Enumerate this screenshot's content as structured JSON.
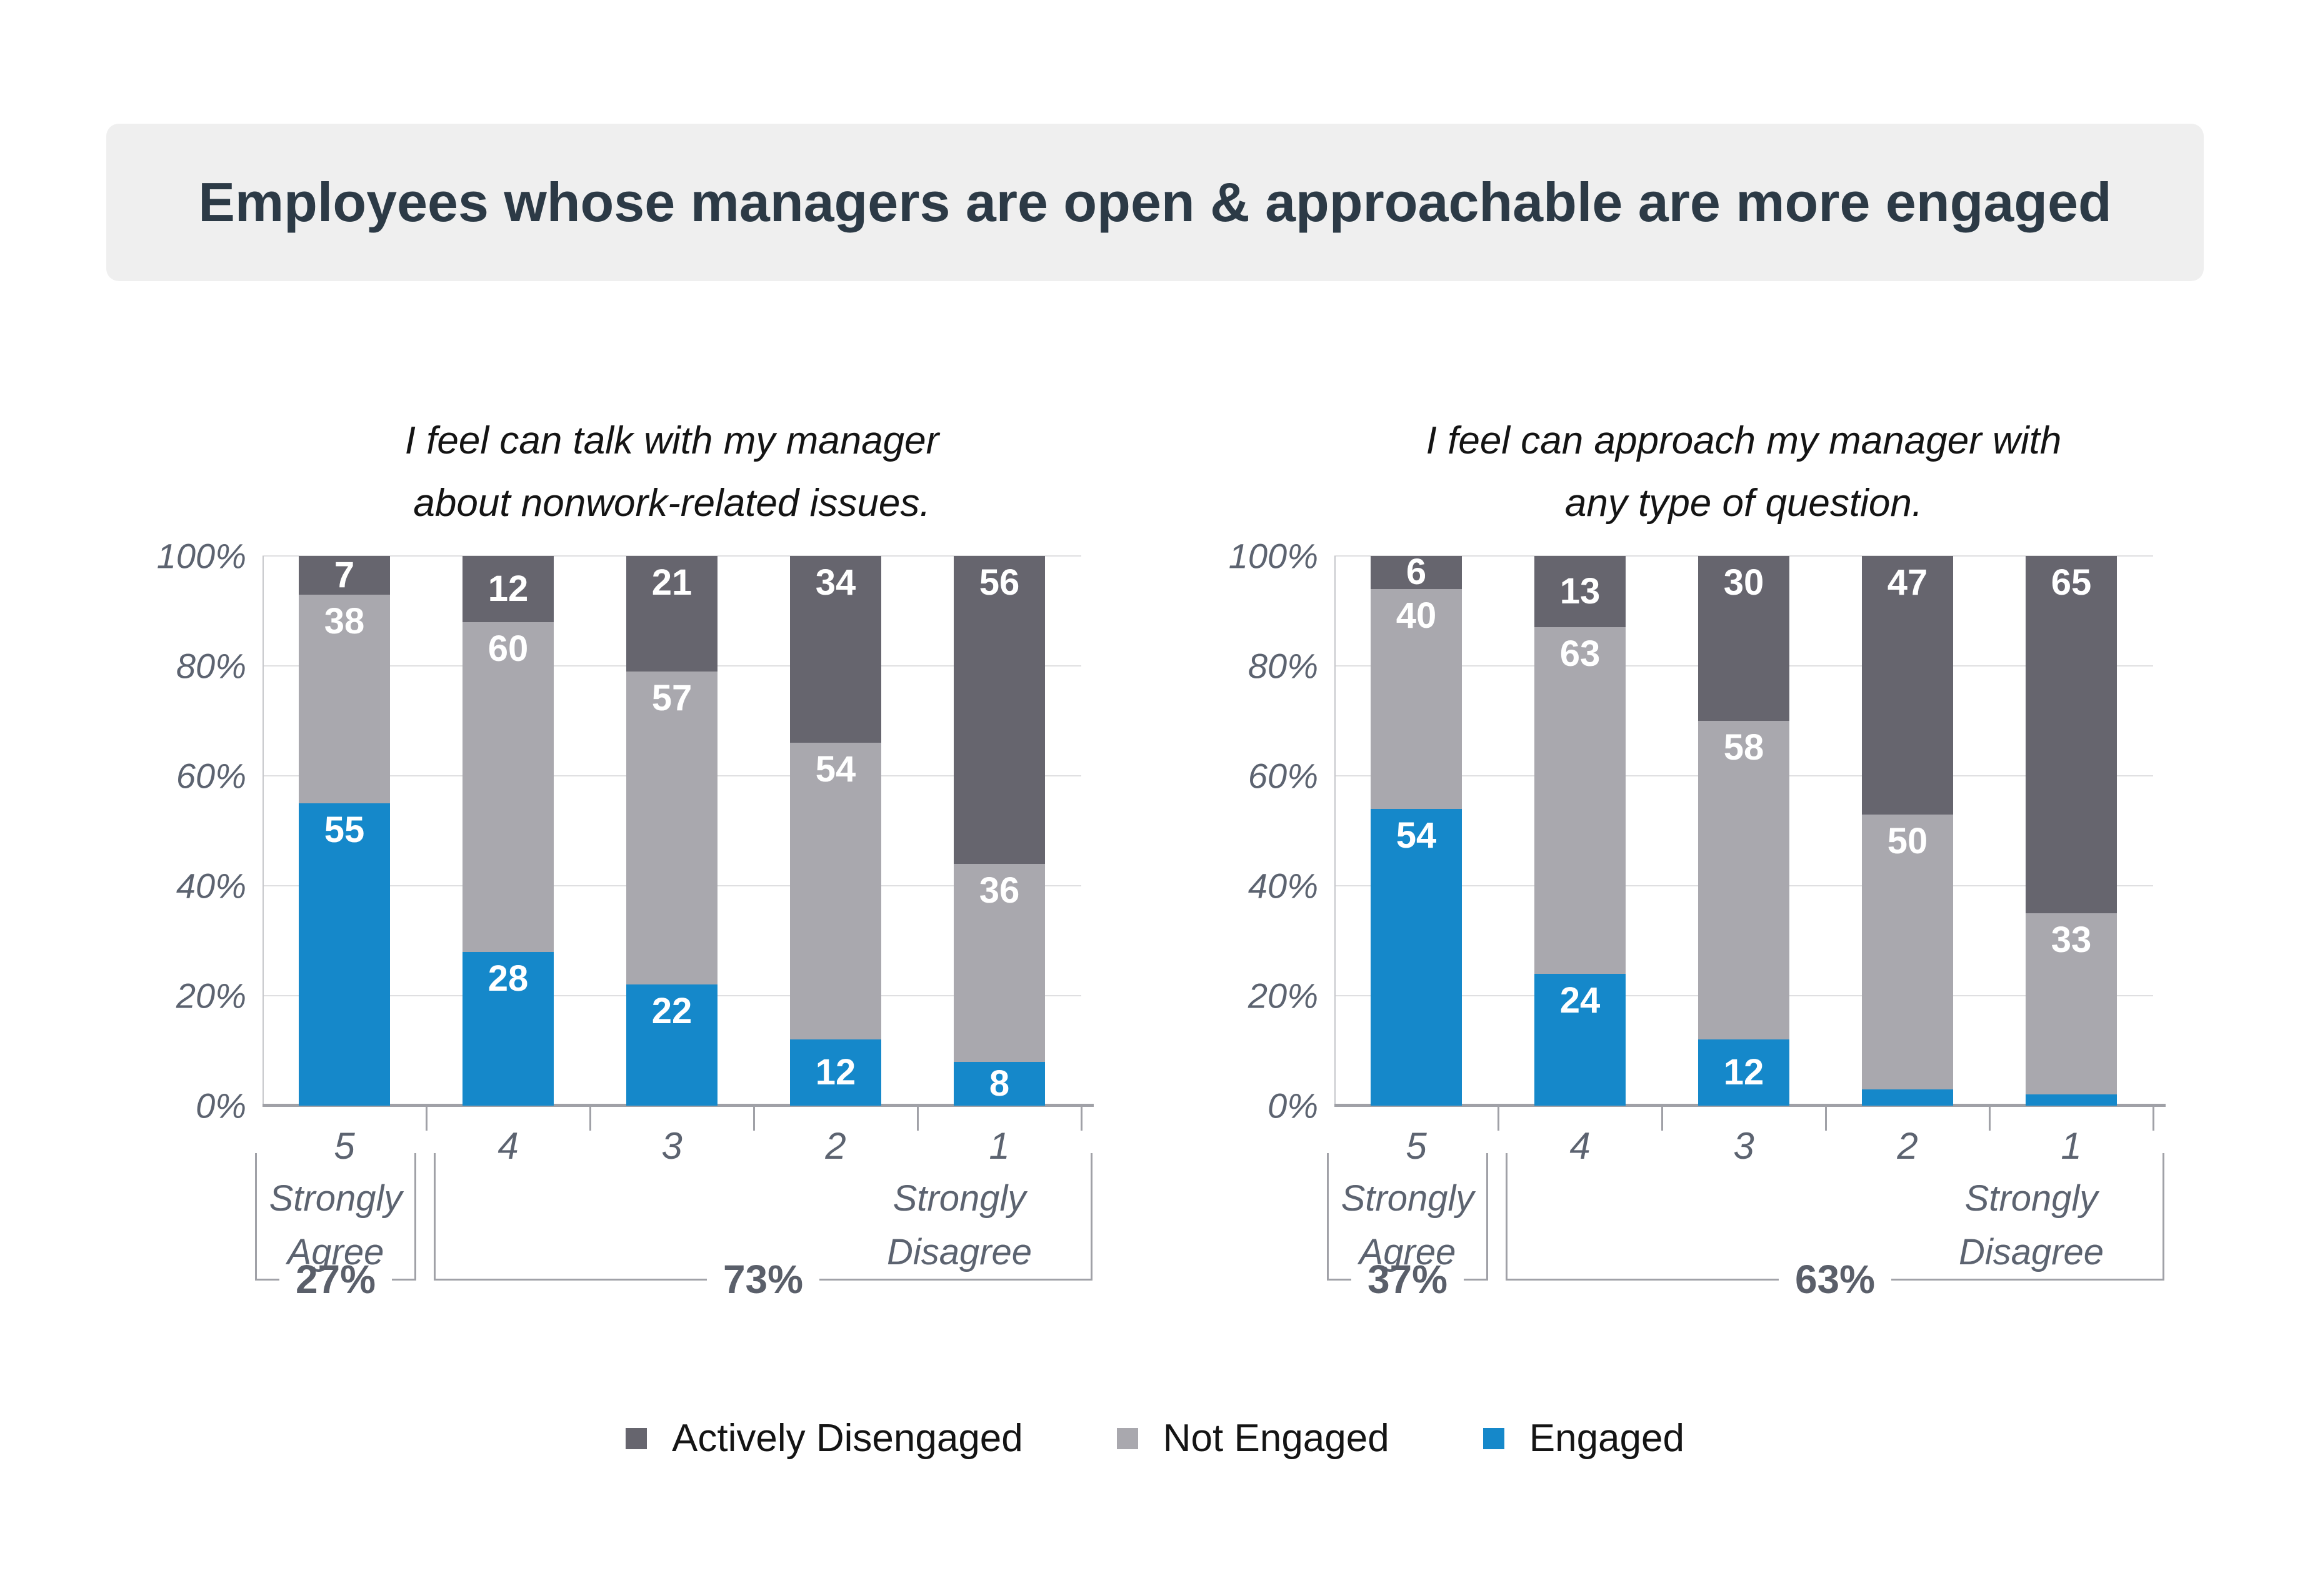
{
  "title": "Employees whose managers are open & approachable are more engaged",
  "colors": {
    "engaged": "#1588CA",
    "not_engaged": "#A9A8AE",
    "actively_disengaged": "#66656E",
    "banner_bg": "#EFEFEF",
    "title_text": "#2C3A46",
    "axis_text": "#5C6370",
    "grid": "#DFDFE1",
    "baseline": "#A0A1A7"
  },
  "chart_data": [
    {
      "type": "bar",
      "stacked": true,
      "title": "I feel can talk with my manager about nonwork-related issues.",
      "title_lines": [
        "I feel can talk with my manager",
        "about nonwork-related issues."
      ],
      "categories": [
        "5",
        "4",
        "3",
        "2",
        "1"
      ],
      "series": [
        {
          "name": "Engaged",
          "color": "#1588CA",
          "values": [
            55,
            28,
            22,
            12,
            8
          ]
        },
        {
          "name": "Not Engaged",
          "color": "#A9A8AE",
          "values": [
            38,
            60,
            57,
            54,
            36
          ]
        },
        {
          "name": "Actively Disengaged",
          "color": "#66656E",
          "values": [
            7,
            12,
            21,
            34,
            56
          ]
        }
      ],
      "ylim": [
        0,
        100
      ],
      "yticks": [
        "0%",
        "20%",
        "40%",
        "60%",
        "80%",
        "100%"
      ],
      "grid": true,
      "brackets": [
        {
          "label": "Strongly Agree",
          "percent": "27%",
          "span": "first",
          "align": "center"
        },
        {
          "label": "Strongly Disagree",
          "percent": "73%",
          "span": "rest",
          "align": "right"
        }
      ]
    },
    {
      "type": "bar",
      "stacked": true,
      "title": "I feel can approach my manager with any type of question.",
      "title_lines": [
        "I feel can approach my manager with",
        "any type of question."
      ],
      "categories": [
        "5",
        "4",
        "3",
        "2",
        "1"
      ],
      "series": [
        {
          "name": "Engaged",
          "color": "#1588CA",
          "values": [
            54,
            24,
            12,
            3,
            2
          ]
        },
        {
          "name": "Not Engaged",
          "color": "#A9A8AE",
          "values": [
            40,
            63,
            58,
            50,
            33
          ]
        },
        {
          "name": "Actively Disengaged",
          "color": "#66656E",
          "values": [
            6,
            13,
            30,
            47,
            65
          ]
        }
      ],
      "ylim": [
        0,
        100
      ],
      "yticks": [
        "0%",
        "20%",
        "40%",
        "60%",
        "80%",
        "100%"
      ],
      "grid": true,
      "brackets": [
        {
          "label": "Strongly Agree",
          "percent": "37%",
          "span": "first",
          "align": "center"
        },
        {
          "label": "Strongly Disagree",
          "percent": "63%",
          "span": "rest",
          "align": "right"
        }
      ]
    }
  ],
  "legend": {
    "items": [
      {
        "label": "Actively Disengaged",
        "color": "#66656E"
      },
      {
        "label": "Not Engaged",
        "color": "#A9A8AE"
      },
      {
        "label": "Engaged",
        "color": "#1588CA"
      }
    ]
  }
}
